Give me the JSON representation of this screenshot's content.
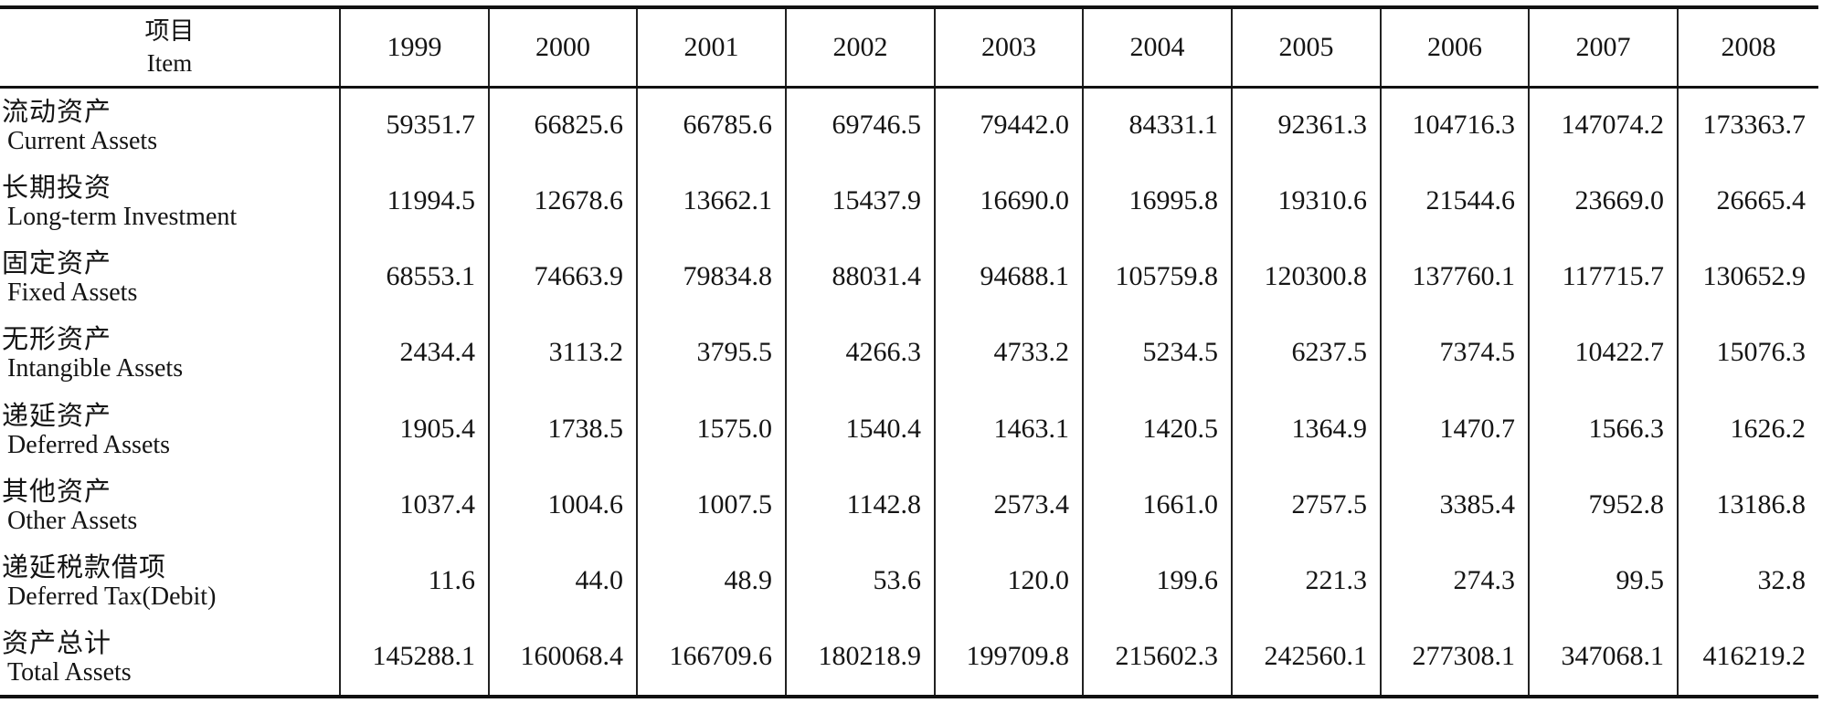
{
  "table": {
    "header": {
      "item_cn": "项目",
      "item_en": "Item",
      "years": [
        "1999",
        "2000",
        "2001",
        "2002",
        "2003",
        "2004",
        "2005",
        "2006",
        "2007",
        "2008"
      ]
    },
    "rows": [
      {
        "label_cn": "流动资产",
        "label_en": "Current Assets",
        "values": [
          "59351.7",
          "66825.6",
          "66785.6",
          "69746.5",
          "79442.0",
          "84331.1",
          "92361.3",
          "104716.3",
          "147074.2",
          "173363.7"
        ]
      },
      {
        "label_cn": "长期投资",
        "label_en": "Long-term Investment",
        "values": [
          "11994.5",
          "12678.6",
          "13662.1",
          "15437.9",
          "16690.0",
          "16995.8",
          "19310.6",
          "21544.6",
          "23669.0",
          "26665.4"
        ]
      },
      {
        "label_cn": "固定资产",
        "label_en": "Fixed Assets",
        "values": [
          "68553.1",
          "74663.9",
          "79834.8",
          "88031.4",
          "94688.1",
          "105759.8",
          "120300.8",
          "137760.1",
          "117715.7",
          "130652.9"
        ]
      },
      {
        "label_cn": "无形资产",
        "label_en": "Intangible Assets",
        "values": [
          "2434.4",
          "3113.2",
          "3795.5",
          "4266.3",
          "4733.2",
          "5234.5",
          "6237.5",
          "7374.5",
          "10422.7",
          "15076.3"
        ]
      },
      {
        "label_cn": "递延资产",
        "label_en": "Deferred Assets",
        "values": [
          "1905.4",
          "1738.5",
          "1575.0",
          "1540.4",
          "1463.1",
          "1420.5",
          "1364.9",
          "1470.7",
          "1566.3",
          "1626.2"
        ]
      },
      {
        "label_cn": "其他资产",
        "label_en": "Other Assets",
        "values": [
          "1037.4",
          "1004.6",
          "1007.5",
          "1142.8",
          "2573.4",
          "1661.0",
          "2757.5",
          "3385.4",
          "7952.8",
          "13186.8"
        ]
      },
      {
        "label_cn": "递延税款借项",
        "label_en": "Deferred Tax(Debit)",
        "values": [
          "11.6",
          "44.0",
          "48.9",
          "53.6",
          "120.0",
          "199.6",
          "221.3",
          "274.3",
          "99.5",
          "32.8"
        ]
      },
      {
        "label_cn": "资产总计",
        "label_en": "Total Assets",
        "values": [
          "145288.1",
          "160068.4",
          "166709.6",
          "180218.9",
          "199709.8",
          "215602.3",
          "242560.1",
          "277308.1",
          "347068.1",
          "416219.2"
        ]
      }
    ]
  }
}
